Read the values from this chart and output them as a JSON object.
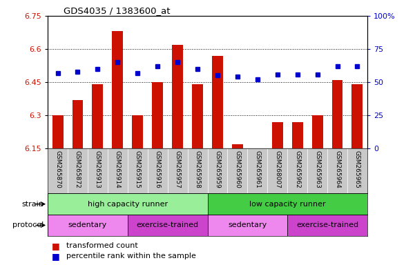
{
  "title": "GDS4035 / 1383600_at",
  "samples": [
    "GSM265870",
    "GSM265872",
    "GSM265913",
    "GSM265914",
    "GSM265915",
    "GSM265916",
    "GSM265957",
    "GSM265958",
    "GSM265959",
    "GSM265960",
    "GSM265961",
    "GSM268007",
    "GSM265962",
    "GSM265963",
    "GSM265964",
    "GSM265965"
  ],
  "transformed_count": [
    6.3,
    6.37,
    6.44,
    6.68,
    6.3,
    6.45,
    6.62,
    6.44,
    6.57,
    6.17,
    6.15,
    6.27,
    6.27,
    6.3,
    6.46,
    6.44
  ],
  "percentile_rank": [
    57,
    58,
    60,
    65,
    57,
    62,
    65,
    60,
    55,
    54,
    52,
    56,
    56,
    56,
    62,
    62
  ],
  "ylim_left": [
    6.15,
    6.75
  ],
  "ylim_right": [
    0,
    100
  ],
  "yticks_left": [
    6.15,
    6.3,
    6.45,
    6.6,
    6.75
  ],
  "ytick_labels_left": [
    "6.15",
    "6.3",
    "6.45",
    "6.6",
    "6.75"
  ],
  "yticks_right": [
    0,
    25,
    50,
    75,
    100
  ],
  "ytick_labels_right": [
    "0",
    "25",
    "50",
    "75",
    "100%"
  ],
  "bar_color": "#CC1100",
  "dot_color": "#0000CC",
  "bar_bottom": 6.15,
  "strain_groups": [
    {
      "label": "high capacity runner",
      "start": 0,
      "end": 8,
      "color": "#99EE99"
    },
    {
      "label": "low capacity runner",
      "start": 8,
      "end": 16,
      "color": "#44CC44"
    }
  ],
  "protocol_groups": [
    {
      "label": "sedentary",
      "start": 0,
      "end": 4,
      "color": "#EE88EE"
    },
    {
      "label": "exercise-trained",
      "start": 4,
      "end": 8,
      "color": "#CC44CC"
    },
    {
      "label": "sedentary",
      "start": 8,
      "end": 12,
      "color": "#EE88EE"
    },
    {
      "label": "exercise-trained",
      "start": 12,
      "end": 16,
      "color": "#CC44CC"
    }
  ],
  "legend_items": [
    {
      "color": "#CC1100",
      "label": "transformed count"
    },
    {
      "color": "#0000CC",
      "label": "percentile rank within the sample"
    }
  ],
  "background_color": "#FFFFFF",
  "tick_label_color_left": "#CC1100",
  "tick_label_color_right": "#0000CC",
  "label_box_color": "#C8C8C8"
}
